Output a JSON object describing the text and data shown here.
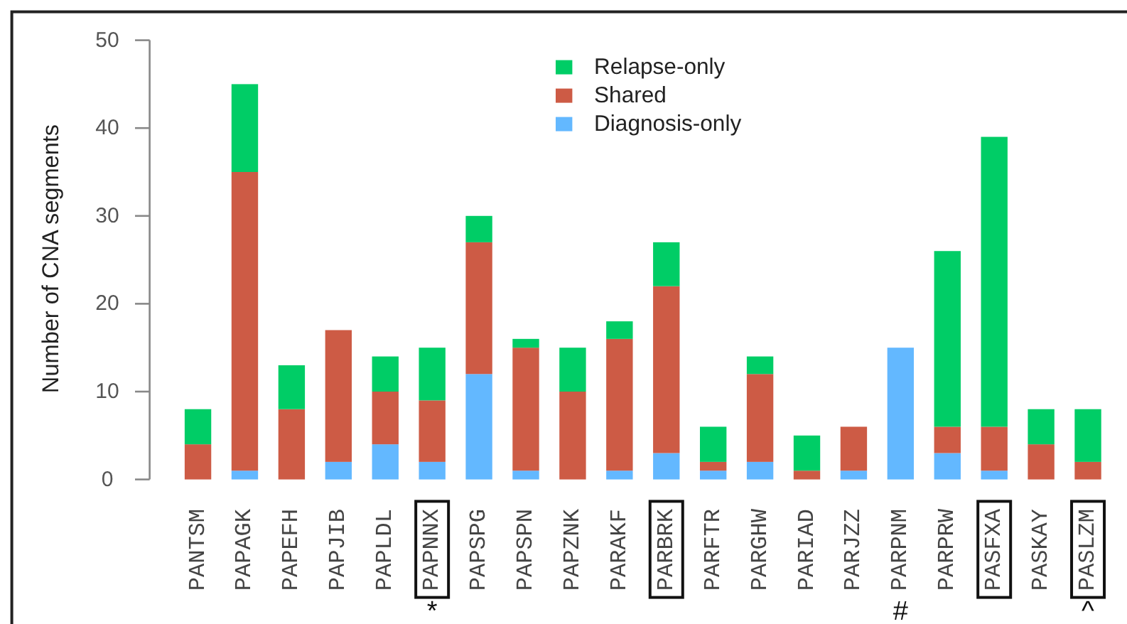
{
  "chart_data": {
    "type": "bar",
    "stacked": true,
    "ylabel": "Number of CNA segments",
    "categories": [
      "PANTSM",
      "PAPAGK",
      "PAPEFH",
      "PAPJIB",
      "PAPLDL",
      "PAPNNX",
      "PAPSPG",
      "PAPSPN",
      "PAPZNK",
      "PARAKF",
      "PARBRK",
      "PARFTR",
      "PARGHW",
      "PARIAD",
      "PARJZZ",
      "PARPNM",
      "PARPRW",
      "PASFXA",
      "PASKAY",
      "PASLZM"
    ],
    "series": [
      {
        "name": "Diagnosis-only",
        "color": "#63b8ff",
        "values": [
          0,
          1,
          0,
          2,
          4,
          2,
          12,
          1,
          0,
          1,
          3,
          1,
          2,
          0,
          1,
          15,
          3,
          1,
          0,
          0
        ]
      },
      {
        "name": "Shared",
        "color": "#cd5b45",
        "values": [
          4,
          34,
          8,
          15,
          6,
          7,
          15,
          14,
          10,
          15,
          19,
          1,
          10,
          1,
          5,
          0,
          3,
          5,
          4,
          2
        ]
      },
      {
        "name": "Relapse-only",
        "color": "#00cd66",
        "values": [
          4,
          10,
          5,
          0,
          4,
          6,
          3,
          1,
          5,
          2,
          5,
          4,
          2,
          4,
          0,
          0,
          20,
          33,
          4,
          6
        ]
      }
    ],
    "ylim": [
      0,
      50
    ],
    "yticks": [
      0,
      10,
      20,
      30,
      40,
      50
    ],
    "legend": "top",
    "annotations": [
      "*",
      "#",
      "^"
    ]
  }
}
